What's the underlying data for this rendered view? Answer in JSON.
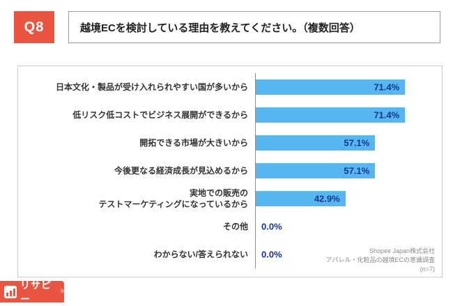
{
  "header": {
    "q_label": "Q8",
    "title": "越境ECを検討している理由を教えてください。（複数回答）"
  },
  "chart_data": {
    "type": "bar",
    "orientation": "horizontal",
    "title": "越境ECを検討している理由",
    "categories": [
      "日本文化・製品が受け入れられやすい国が多いから",
      "低リスク低コストでビジネス展開ができるから",
      "開拓できる市場が大きいから",
      "今後更なる経済成長が見込めるから",
      "実地での販売の\nテストマーケティングになっているから",
      "その他",
      "わからない/答えられない"
    ],
    "values": [
      71.4,
      71.4,
      57.1,
      57.1,
      42.9,
      0.0,
      0.0
    ],
    "value_labels": [
      "71.4%",
      "71.4%",
      "57.1%",
      "57.1%",
      "42.9%",
      "0.0%",
      "0.0%"
    ],
    "xlim": [
      0,
      80
    ],
    "grid": false,
    "legend": false,
    "bar_color": "#56B6EF",
    "value_label_color": "#17358F"
  },
  "footer": {
    "lines": [
      "Shopee Japan株式会社",
      "アパレル・化粧品の越境ECの意識調査",
      "(n=7)"
    ]
  },
  "logo": {
    "text": "リサピー",
    "registered_mark": "®"
  }
}
